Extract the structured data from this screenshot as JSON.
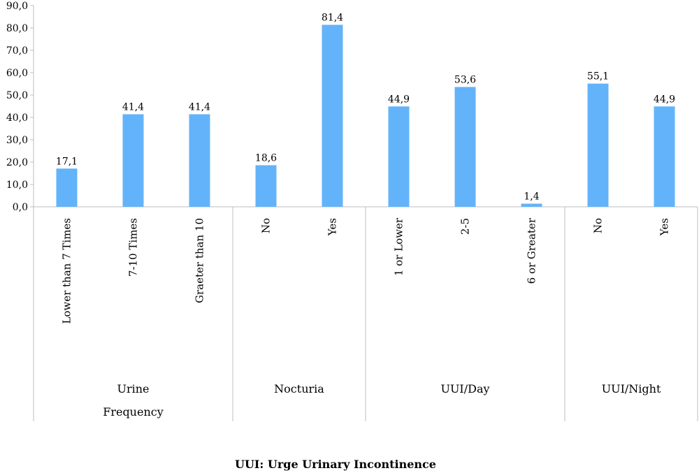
{
  "chart_data": {
    "type": "bar",
    "title": "",
    "xlabel": "",
    "ylabel": "",
    "ylim": [
      0,
      90
    ],
    "yticks": [
      "0,0",
      "10,0",
      "20,0",
      "30,0",
      "40,0",
      "50,0",
      "60,0",
      "70,0",
      "80,0",
      "90,0"
    ],
    "grid": false,
    "bar_color": "#63b3fa",
    "groups": [
      {
        "label": [
          "Urine",
          "Frequency"
        ],
        "categories": [
          "Lower than 7 Times",
          "7-10 Times",
          "Graeter than 10"
        ],
        "values": [
          17.1,
          41.4,
          41.4
        ],
        "labels": [
          "17,1",
          "41,4",
          "41,4"
        ]
      },
      {
        "label": [
          "Nocturia"
        ],
        "categories": [
          "No",
          "Yes"
        ],
        "values": [
          18.6,
          81.4
        ],
        "labels": [
          "18,6",
          "81,4"
        ]
      },
      {
        "label": [
          "UUI/Day"
        ],
        "categories": [
          "1 or Lower",
          "2-5",
          "6 or Greater"
        ],
        "values": [
          44.9,
          53.6,
          1.4
        ],
        "labels": [
          "44,9",
          "53,6",
          "1,4"
        ]
      },
      {
        "label": [
          "UUI/Night"
        ],
        "categories": [
          "No",
          "Yes"
        ],
        "values": [
          55.1,
          44.9
        ],
        "labels": [
          "55,1",
          "44,9"
        ]
      }
    ]
  },
  "footnote": "UUI: Urge Urinary Incontinence"
}
